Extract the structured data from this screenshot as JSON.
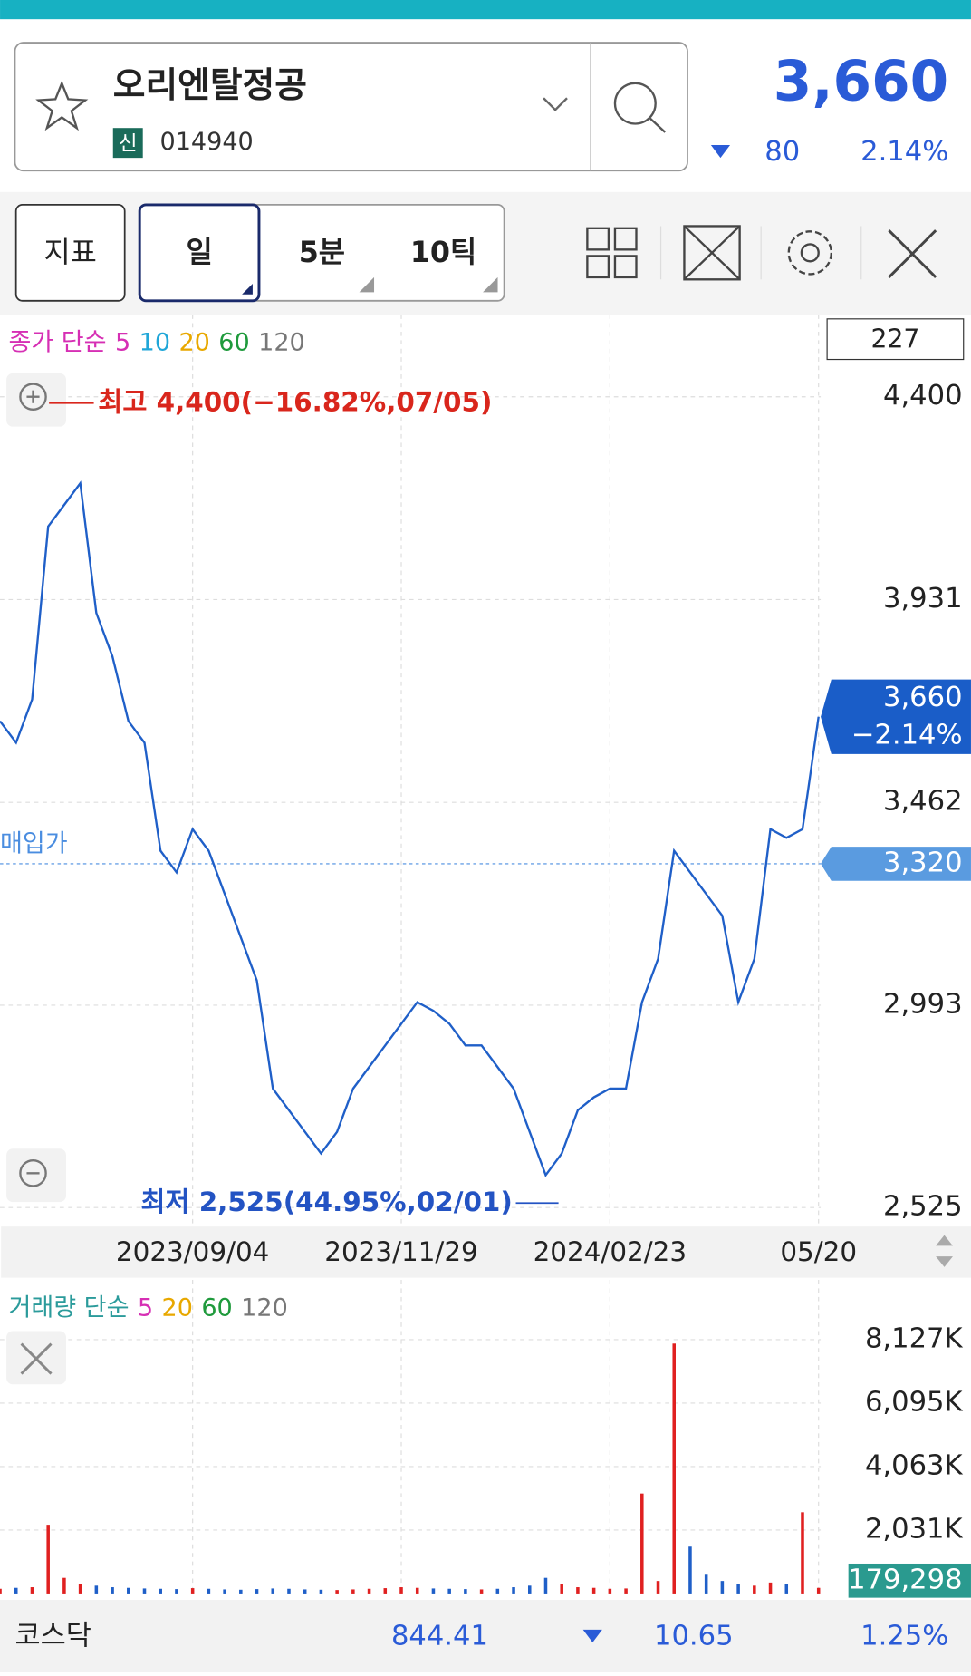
{
  "header": {
    "stock_name": "오리엔탈정공",
    "market_badge": "신",
    "code": "014940",
    "price": "3,660",
    "change": "80",
    "change_rate": "2.14%"
  },
  "toolbar": {
    "buttons": [
      "지표",
      "일",
      "5분",
      "10틱"
    ]
  },
  "chart_data": [
    {
      "type": "line",
      "legend_title": "종가 단순",
      "legend_items": [
        {
          "label": "5",
          "color": "#d62fb4"
        },
        {
          "label": "10",
          "color": "#1fa6d8"
        },
        {
          "label": "20",
          "color": "#e8a800"
        },
        {
          "label": "60",
          "color": "#1f9a3c"
        },
        {
          "label": "120",
          "color": "#777777"
        }
      ],
      "count_box": "227",
      "categories": [
        null,
        null,
        null,
        null,
        null,
        null,
        null,
        null,
        null,
        null,
        null,
        null,
        "2023/09/04",
        null,
        null,
        null,
        null,
        null,
        null,
        null,
        null,
        null,
        null,
        null,
        null,
        "2023/11/29",
        null,
        null,
        null,
        null,
        null,
        null,
        null,
        null,
        null,
        null,
        null,
        null,
        "2024/02/23",
        null,
        null,
        null,
        null,
        null,
        null,
        null,
        null,
        null,
        null,
        null,
        null,
        "05/20"
      ],
      "series": [
        {
          "color": "#1f5fc8",
          "values": [
            3650,
            3600,
            3700,
            4100,
            4150,
            4200,
            3900,
            3800,
            3650,
            3600,
            3350,
            3300,
            3400,
            3350,
            3250,
            3150,
            3050,
            2800,
            2750,
            2700,
            2650,
            2700,
            2800,
            2850,
            2900,
            2950,
            3000,
            2980,
            2950,
            2900,
            2900,
            2850,
            2800,
            2700,
            2600,
            2650,
            2750,
            2780,
            2800,
            2800,
            3000,
            3100,
            3350,
            3300,
            3250,
            3200,
            3000,
            3100,
            3400,
            3380,
            3400,
            3660
          ]
        }
      ],
      "ylim": [
        2481,
        4590
      ],
      "yticks": [
        {
          "value": 4400,
          "label": "4,400"
        },
        {
          "value": 3931,
          "label": "3,931"
        },
        {
          "value": 3462,
          "label": "3,462"
        },
        {
          "value": 2993,
          "label": "2,993"
        },
        {
          "value": 2525,
          "label": "2,525"
        }
      ],
      "grid": true,
      "high_label": "최고 4,400(−16.82%,07/05)",
      "low_label": "최저 2,525(44.95%,02/01)",
      "avg_price_label": "매입가",
      "avg_price": {
        "value": 3320,
        "label": "3,320"
      },
      "last_price": {
        "value": 3660,
        "label": "3,660"
      },
      "last_change": "−2.14%"
    },
    {
      "type": "bar",
      "legend_title": "거래량 단순",
      "legend_items": [
        {
          "label": "5",
          "color": "#d62fb4"
        },
        {
          "label": "20",
          "color": "#e8a800"
        },
        {
          "label": "60",
          "color": "#1f9a3c"
        },
        {
          "label": "120",
          "color": "#777777"
        }
      ],
      "values": [
        150,
        180,
        200,
        2200,
        500,
        300,
        250,
        200,
        180,
        160,
        150,
        140,
        170,
        150,
        130,
        120,
        140,
        160,
        150,
        130,
        120,
        110,
        130,
        150,
        170,
        200,
        180,
        160,
        150,
        140,
        130,
        150,
        200,
        250,
        500,
        300,
        200,
        180,
        150,
        160,
        3200,
        400,
        8000,
        1500,
        600,
        400,
        300,
        250,
        350,
        300,
        2600,
        179.298
      ],
      "ylim": [
        0,
        10040
      ],
      "yticks": [
        {
          "value": 8127,
          "label": "8,127K"
        },
        {
          "value": 6095,
          "label": "6,095K"
        },
        {
          "value": 4063,
          "label": "4,063K"
        },
        {
          "value": 2031,
          "label": "2,031K"
        }
      ],
      "grid": true,
      "last_volume": {
        "value": 179.298,
        "label": "179,298"
      }
    }
  ],
  "footer": {
    "index_name": "코스닥",
    "index_value": "844.41",
    "change": "10.65",
    "change_rate": "1.25%"
  }
}
